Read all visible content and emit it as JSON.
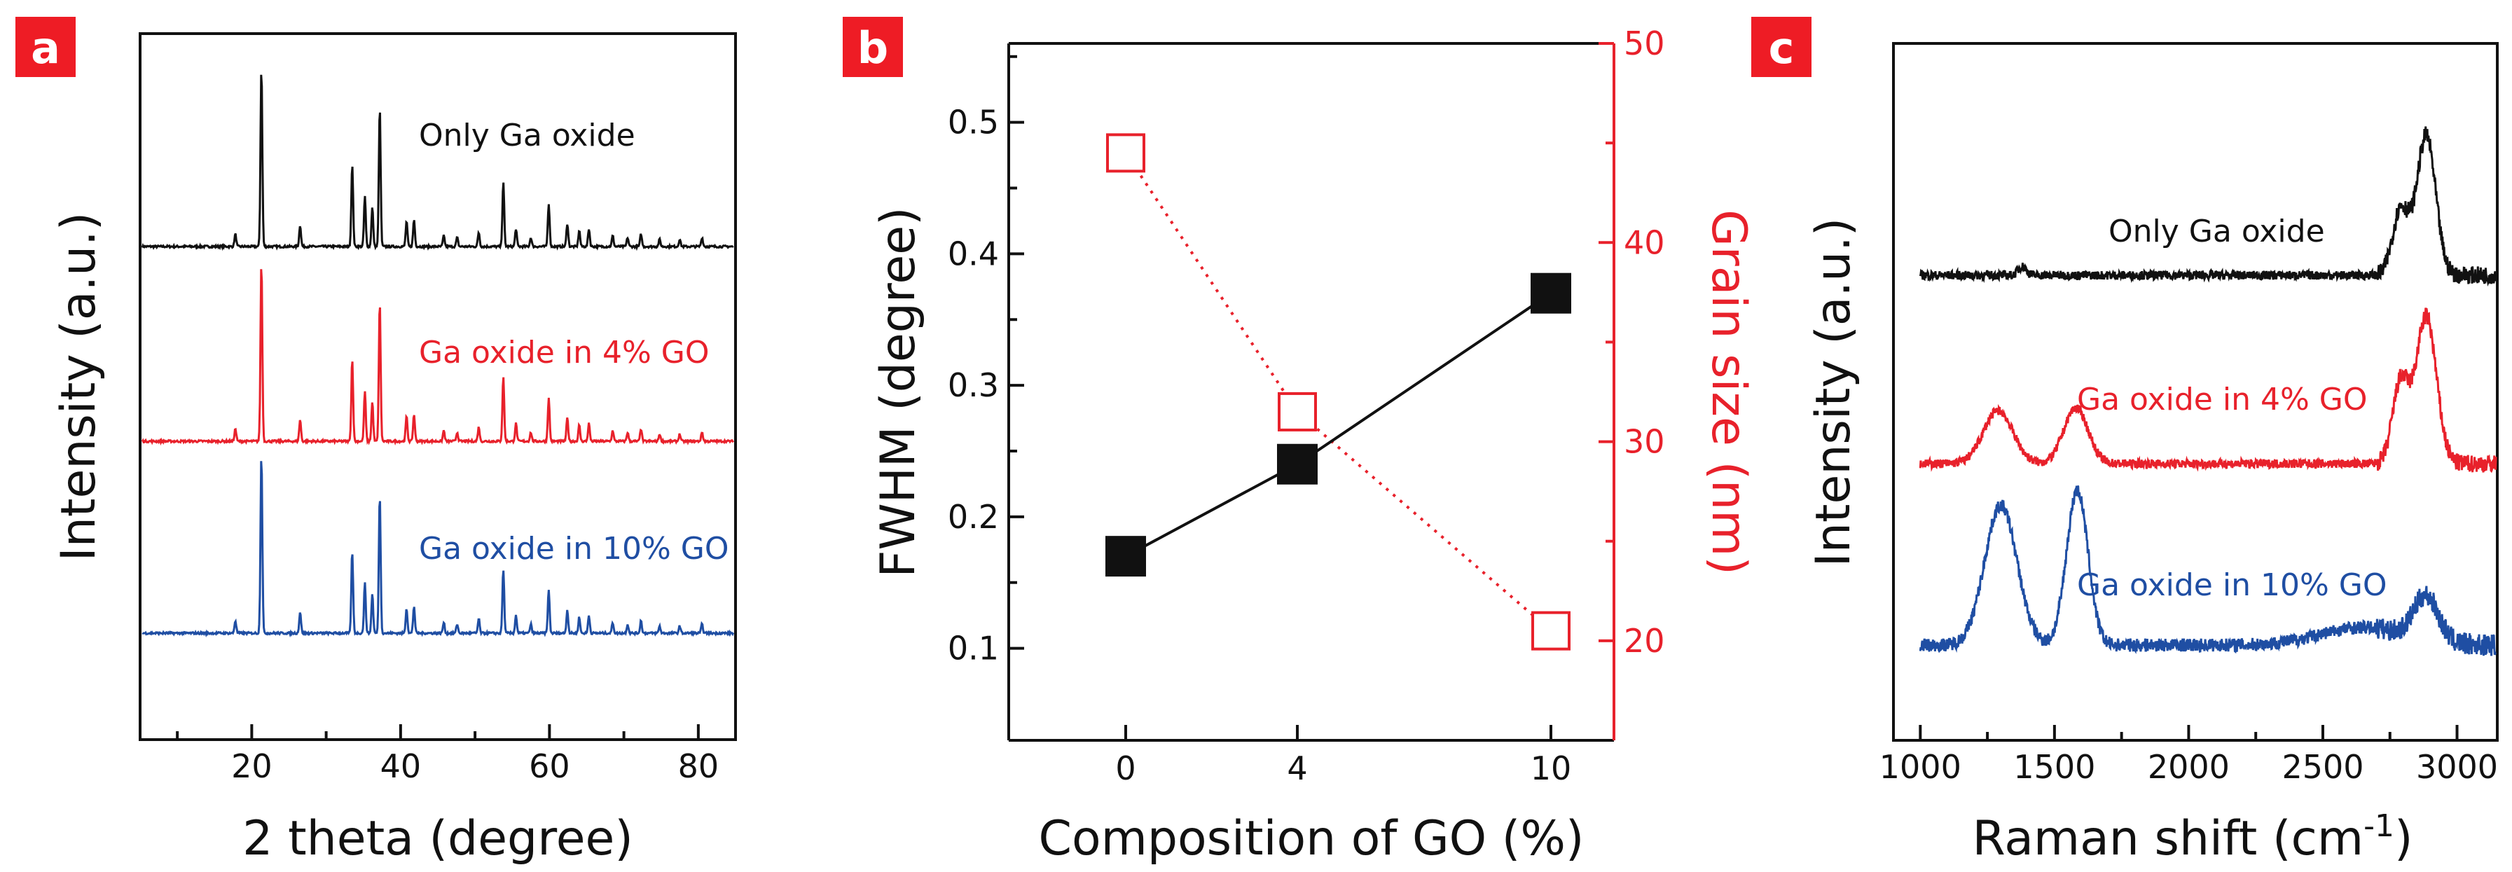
{
  "colors": {
    "black": "#111111",
    "red": "#e8212b",
    "blue": "#1f4ea3",
    "badge": "#ee1c25"
  },
  "panels": {
    "a": {
      "badge": "a"
    },
    "b": {
      "badge": "b"
    },
    "c": {
      "badge": "c"
    }
  },
  "chart_data": [
    {
      "panel": "a",
      "type": "line",
      "title": "",
      "xlabel": "2 theta (degree)",
      "ylabel": "Intensity (a.u.)",
      "xlim": [
        5,
        85
      ],
      "xticks": [
        20,
        40,
        60,
        80
      ],
      "xtick_labels": [
        "20",
        "40",
        "60",
        "80"
      ],
      "y_ticks_shown": false,
      "peaks": [
        {
          "x": 17.8,
          "h": 0.07
        },
        {
          "x": 21.3,
          "h": 1.0
        },
        {
          "x": 26.5,
          "h": 0.12
        },
        {
          "x": 33.5,
          "h": 0.46
        },
        {
          "x": 35.2,
          "h": 0.28
        },
        {
          "x": 36.2,
          "h": 0.22
        },
        {
          "x": 37.2,
          "h": 0.78
        },
        {
          "x": 40.8,
          "h": 0.14
        },
        {
          "x": 41.8,
          "h": 0.15
        },
        {
          "x": 45.8,
          "h": 0.06
        },
        {
          "x": 47.6,
          "h": 0.05
        },
        {
          "x": 50.5,
          "h": 0.08
        },
        {
          "x": 53.8,
          "h": 0.36
        },
        {
          "x": 55.5,
          "h": 0.1
        },
        {
          "x": 57.5,
          "h": 0.05
        },
        {
          "x": 59.9,
          "h": 0.24
        },
        {
          "x": 62.4,
          "h": 0.13
        },
        {
          "x": 64.0,
          "h": 0.09
        },
        {
          "x": 65.3,
          "h": 0.1
        },
        {
          "x": 68.5,
          "h": 0.06
        },
        {
          "x": 70.5,
          "h": 0.05
        },
        {
          "x": 72.3,
          "h": 0.07
        },
        {
          "x": 74.8,
          "h": 0.04
        },
        {
          "x": 77.5,
          "h": 0.04
        },
        {
          "x": 80.5,
          "h": 0.05
        }
      ],
      "series": [
        {
          "name": "Only Ga oxide",
          "color": "#111111",
          "scale": 1.0
        },
        {
          "name": "Ga oxide in 4% GO",
          "color": "#e8212b",
          "scale": 1.0
        },
        {
          "name": "Ga oxide in 10% GO",
          "color": "#1f4ea3",
          "scale": 1.0
        }
      ]
    },
    {
      "panel": "b",
      "type": "scatter",
      "title": "",
      "xlabel": "Composition of GO (%)",
      "ylabel": "FWHM (degree)",
      "y2label": "Grain size (nm)",
      "xticks": [
        "0",
        "4",
        "10"
      ],
      "ylim": [
        0.03,
        0.56
      ],
      "yticks": [
        0.1,
        0.2,
        0.3,
        0.4,
        0.5
      ],
      "ytick_labels": [
        "0.1",
        "0.2",
        "0.3",
        "0.4",
        "0.5"
      ],
      "y2lim": [
        15,
        50
      ],
      "y2ticks": [
        20,
        30,
        40,
        50
      ],
      "y2tick_labels": [
        "20",
        "30",
        "40",
        "50"
      ],
      "series": [
        {
          "name": "FWHM",
          "axis": "left",
          "marker": "filled-square",
          "line": "solid",
          "color": "#111111",
          "x": [
            "0",
            "4",
            "10"
          ],
          "values": [
            0.17,
            0.24,
            0.37
          ]
        },
        {
          "name": "Grain size",
          "axis": "right",
          "marker": "open-square",
          "line": "dotted",
          "color": "#e8212b",
          "x": [
            "0",
            "4",
            "10"
          ],
          "values": [
            44.5,
            31.5,
            20.5
          ]
        }
      ]
    },
    {
      "panel": "c",
      "type": "line",
      "title": "",
      "xlabel": "Raman shift (cm⁻¹)",
      "xlabel_main": "Raman shift (cm",
      "xlabel_sup": "-1",
      "xlabel_end": ")",
      "ylabel": "Intensity (a.u.)",
      "xlim": [
        900,
        3150
      ],
      "xticks": [
        1000,
        1500,
        2000,
        2500,
        3000
      ],
      "xtick_labels": [
        "1000",
        "1500",
        "2000",
        "2500",
        "3000"
      ],
      "y_ticks_shown": false,
      "series": [
        {
          "name": "Only Ga oxide",
          "color": "#111111",
          "bands": [
            {
              "x": 1380,
              "h": 0.06,
              "w": 15
            },
            {
              "x": 2790,
              "h": 0.45,
              "w": 30
            },
            {
              "x": 2885,
              "h": 0.95,
              "w": 35
            }
          ]
        },
        {
          "name": "Ga oxide in 4% GO",
          "color": "#e8212b",
          "bands": [
            {
              "x": 1290,
              "h": 0.36,
              "w": 55
            },
            {
              "x": 1580,
              "h": 0.38,
              "w": 45
            },
            {
              "x": 2790,
              "h": 0.55,
              "w": 30
            },
            {
              "x": 2885,
              "h": 1.0,
              "w": 38
            }
          ]
        },
        {
          "name": "Ga oxide in 10% GO",
          "color": "#1f4ea3",
          "bands": [
            {
              "x": 1300,
              "h": 0.95,
              "w": 60
            },
            {
              "x": 1585,
              "h": 1.05,
              "w": 40
            },
            {
              "x": 2650,
              "h": 0.12,
              "w": 160
            },
            {
              "x": 2885,
              "h": 0.3,
              "w": 45
            }
          ]
        }
      ]
    }
  ]
}
